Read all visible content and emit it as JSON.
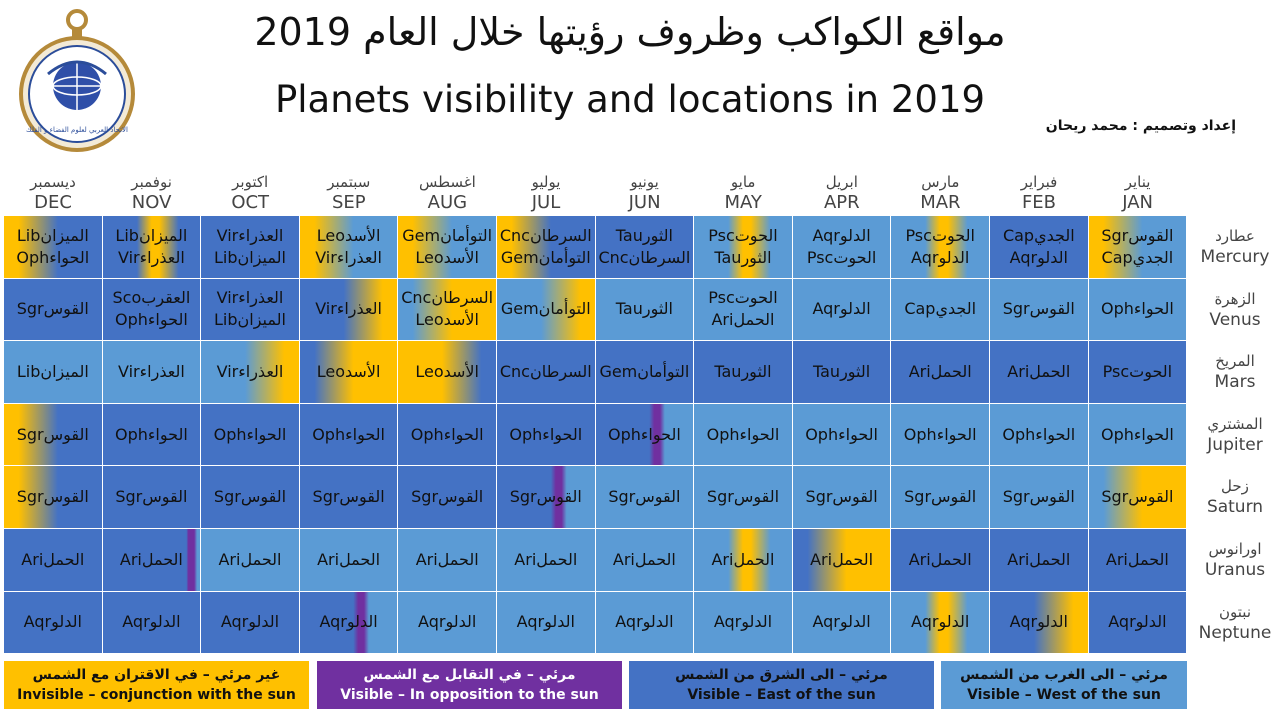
{
  "title_ar": "مواقع الكواكب وظروف رؤيتها خلال العام 2019",
  "title_en": "Planets visibility and locations in 2019",
  "credit": "إعداد وتصميم : محمد ريحان",
  "logo_text": "الاتحاد العربي لعلوم الفضاء و الفلك",
  "colors": {
    "west": "#5b9bd5",
    "east": "#4472c4",
    "opposition": "#7030a0",
    "conjunction": "#ffc000"
  },
  "months": [
    {
      "ar": "ديسمبر",
      "en": "DEC"
    },
    {
      "ar": "نوفمبر",
      "en": "NOV"
    },
    {
      "ar": "اكتوبر",
      "en": "OCT"
    },
    {
      "ar": "سبتمبر",
      "en": "SEP"
    },
    {
      "ar": "اغسطس",
      "en": "AUG"
    },
    {
      "ar": "يوليو",
      "en": "JUL"
    },
    {
      "ar": "يونيو",
      "en": "JUN"
    },
    {
      "ar": "مايو",
      "en": "MAY"
    },
    {
      "ar": "ابريل",
      "en": "APR"
    },
    {
      "ar": "مارس",
      "en": "MAR"
    },
    {
      "ar": "فبراير",
      "en": "FEB"
    },
    {
      "ar": "يناير",
      "en": "JAN"
    }
  ],
  "planets": [
    {
      "ar": "عطارد",
      "en": "Mercury",
      "cells": [
        {
          "lines": [
            [
              "Lib",
              "الميزان"
            ],
            [
              "Oph",
              "الحواء"
            ]
          ],
          "base": "east",
          "accent": "conjunction",
          "accent_side": "left"
        },
        {
          "lines": [
            [
              "Lib",
              "الميزان"
            ],
            [
              "Vir",
              "العذراء"
            ]
          ],
          "base": "east",
          "accent": "conjunction",
          "accent_side": "center"
        },
        {
          "lines": [
            [
              "Vir",
              "العذراء"
            ],
            [
              "Lib",
              "الميزان"
            ]
          ],
          "base": "east"
        },
        {
          "lines": [
            [
              "Leo",
              "الأسد"
            ],
            [
              "Vir",
              "العذراء"
            ]
          ],
          "base": "west",
          "accent": "conjunction",
          "accent_side": "left"
        },
        {
          "lines": [
            [
              "Gem",
              "التوأمان"
            ],
            [
              "Leo",
              "الأسد"
            ]
          ],
          "base": "west",
          "accent": "conjunction",
          "accent_side": "left"
        },
        {
          "lines": [
            [
              "Cnc",
              "السرطان"
            ],
            [
              "Gem",
              "التوأمان"
            ]
          ],
          "base": "east",
          "accent": "conjunction",
          "accent_side": "left"
        },
        {
          "lines": [
            [
              "Tau",
              "الثور"
            ],
            [
              "Cnc",
              "السرطان"
            ]
          ],
          "base": "east"
        },
        {
          "lines": [
            [
              "Psc",
              "الحوت"
            ],
            [
              "Tau",
              "الثور"
            ]
          ],
          "base": "west",
          "accent": "conjunction",
          "accent_side": "center"
        },
        {
          "lines": [
            [
              "Aqr",
              "الدلو"
            ],
            [
              "Psc",
              "الحوت"
            ]
          ],
          "base": "west"
        },
        {
          "lines": [
            [
              "Psc",
              "الحوت"
            ],
            [
              "Aqr",
              "الدلو"
            ]
          ],
          "base": "west",
          "accent": "conjunction",
          "accent_side": "center"
        },
        {
          "lines": [
            [
              "Cap",
              "الجدي"
            ],
            [
              "Aqr",
              "الدلو"
            ]
          ],
          "base": "east"
        },
        {
          "lines": [
            [
              "Sgr",
              "القوس"
            ],
            [
              "Cap",
              "الجدي"
            ]
          ],
          "base": "west",
          "accent": "conjunction",
          "accent_side": "left"
        }
      ]
    },
    {
      "ar": "الزهرة",
      "en": "Venus",
      "cells": [
        {
          "lines": [
            [
              "Sgr",
              "القوس"
            ]
          ],
          "base": "east"
        },
        {
          "lines": [
            [
              "Sco",
              "العقرب"
            ],
            [
              "Oph",
              "الحواء"
            ]
          ],
          "base": "east"
        },
        {
          "lines": [
            [
              "Vir",
              "العذراء"
            ],
            [
              "Lib",
              "الميزان"
            ]
          ],
          "base": "east"
        },
        {
          "lines": [
            [
              "Vir",
              "العذراء"
            ]
          ],
          "base": "east",
          "accent": "conjunction",
          "accent_side": "right"
        },
        {
          "lines": [
            [
              "Cnc",
              "السرطان"
            ],
            [
              "Leo",
              "الأسد"
            ]
          ],
          "base": "conjunction",
          "accent": "west",
          "accent_side": "left"
        },
        {
          "lines": [
            [
              "Gem",
              "التوأمان"
            ]
          ],
          "base": "west",
          "accent": "conjunction",
          "accent_side": "right"
        },
        {
          "lines": [
            [
              "Tau",
              "الثور"
            ]
          ],
          "base": "west"
        },
        {
          "lines": [
            [
              "Psc",
              "الحوت"
            ],
            [
              "Ari",
              "الحمل"
            ]
          ],
          "base": "west"
        },
        {
          "lines": [
            [
              "Aqr",
              "الدلو"
            ]
          ],
          "base": "west"
        },
        {
          "lines": [
            [
              "Cap",
              "الجدي"
            ]
          ],
          "base": "west"
        },
        {
          "lines": [
            [
              "Sgr",
              "القوس"
            ]
          ],
          "base": "west"
        },
        {
          "lines": [
            [
              "Oph",
              "الحواء"
            ]
          ],
          "base": "west"
        }
      ]
    },
    {
      "ar": "المريخ",
      "en": "Mars",
      "cells": [
        {
          "lines": [
            [
              "Lib",
              "الميزان"
            ]
          ],
          "base": "west"
        },
        {
          "lines": [
            [
              "Vir",
              "العذراء"
            ]
          ],
          "base": "west"
        },
        {
          "lines": [
            [
              "Vir",
              "العذراء"
            ]
          ],
          "base": "west",
          "accent": "conjunction",
          "accent_side": "right"
        },
        {
          "lines": [
            [
              "Leo",
              "الأسد"
            ]
          ],
          "base": "conjunction",
          "accent": "east",
          "accent_side": "left"
        },
        {
          "lines": [
            [
              "Leo",
              "الأسد"
            ]
          ],
          "base": "conjunction",
          "accent": "east",
          "accent_side": "right"
        },
        {
          "lines": [
            [
              "Cnc",
              "السرطان"
            ]
          ],
          "base": "east"
        },
        {
          "lines": [
            [
              "Gem",
              "التوأمان"
            ]
          ],
          "base": "east"
        },
        {
          "lines": [
            [
              "Tau",
              "الثور"
            ]
          ],
          "base": "east"
        },
        {
          "lines": [
            [
              "Tau",
              "الثور"
            ]
          ],
          "base": "east"
        },
        {
          "lines": [
            [
              "Ari",
              "الحمل"
            ]
          ],
          "base": "east"
        },
        {
          "lines": [
            [
              "Ari",
              "الحمل"
            ]
          ],
          "base": "east"
        },
        {
          "lines": [
            [
              "Psc",
              "الحوت"
            ]
          ],
          "base": "east"
        }
      ]
    },
    {
      "ar": "المشتري",
      "en": "Jupiter",
      "cells": [
        {
          "lines": [
            [
              "Sgr",
              "القوس"
            ]
          ],
          "base": "east",
          "accent": "conjunction",
          "accent_side": "left"
        },
        {
          "lines": [
            [
              "Oph",
              "الحواء"
            ]
          ],
          "base": "east"
        },
        {
          "lines": [
            [
              "Oph",
              "الحواء"
            ]
          ],
          "base": "east"
        },
        {
          "lines": [
            [
              "Oph",
              "الحواء"
            ]
          ],
          "base": "east"
        },
        {
          "lines": [
            [
              "Oph",
              "الحواء"
            ]
          ],
          "base": "east"
        },
        {
          "lines": [
            [
              "Oph",
              "الحواء"
            ]
          ],
          "base": "east"
        },
        {
          "lines": [
            [
              "Oph",
              "الحواء"
            ]
          ],
          "base": "east",
          "accent": "opposition",
          "accent_side": "stripe"
        },
        {
          "lines": [
            [
              "Oph",
              "الحواء"
            ]
          ],
          "base": "west"
        },
        {
          "lines": [
            [
              "Oph",
              "الحواء"
            ]
          ],
          "base": "west"
        },
        {
          "lines": [
            [
              "Oph",
              "الحواء"
            ]
          ],
          "base": "west"
        },
        {
          "lines": [
            [
              "Oph",
              "الحواء"
            ]
          ],
          "base": "west"
        },
        {
          "lines": [
            [
              "Oph",
              "الحواء"
            ]
          ],
          "base": "west"
        }
      ]
    },
    {
      "ar": "زحل",
      "en": "Saturn",
      "cells": [
        {
          "lines": [
            [
              "Sgr",
              "القوس"
            ]
          ],
          "base": "east",
          "accent": "conjunction",
          "accent_side": "left"
        },
        {
          "lines": [
            [
              "Sgr",
              "القوس"
            ]
          ],
          "base": "east"
        },
        {
          "lines": [
            [
              "Sgr",
              "القوس"
            ]
          ],
          "base": "east"
        },
        {
          "lines": [
            [
              "Sgr",
              "القوس"
            ]
          ],
          "base": "east"
        },
        {
          "lines": [
            [
              "Sgr",
              "القوس"
            ]
          ],
          "base": "east"
        },
        {
          "lines": [
            [
              "Sgr",
              "القوس"
            ]
          ],
          "base": "east",
          "accent": "opposition",
          "accent_side": "stripe"
        },
        {
          "lines": [
            [
              "Sgr",
              "القوس"
            ]
          ],
          "base": "west"
        },
        {
          "lines": [
            [
              "Sgr",
              "القوس"
            ]
          ],
          "base": "west"
        },
        {
          "lines": [
            [
              "Sgr",
              "القوس"
            ]
          ],
          "base": "west"
        },
        {
          "lines": [
            [
              "Sgr",
              "القوس"
            ]
          ],
          "base": "west"
        },
        {
          "lines": [
            [
              "Sgr",
              "القوس"
            ]
          ],
          "base": "west"
        },
        {
          "lines": [
            [
              "Sgr",
              "القوس"
            ]
          ],
          "base": "conjunction",
          "accent": "west",
          "accent_side": "left"
        }
      ]
    },
    {
      "ar": "اورانوس",
      "en": "Uranus",
      "cells": [
        {
          "lines": [
            [
              "Ari",
              "الحمل"
            ]
          ],
          "base": "east"
        },
        {
          "lines": [
            [
              "Ari",
              "الحمل"
            ]
          ],
          "base": "east",
          "accent": "opposition",
          "accent_side": "stripe-left"
        },
        {
          "lines": [
            [
              "Ari",
              "الحمل"
            ]
          ],
          "base": "west"
        },
        {
          "lines": [
            [
              "Ari",
              "الحمل"
            ]
          ],
          "base": "west"
        },
        {
          "lines": [
            [
              "Ari",
              "الحمل"
            ]
          ],
          "base": "west"
        },
        {
          "lines": [
            [
              "Ari",
              "الحمل"
            ]
          ],
          "base": "west"
        },
        {
          "lines": [
            [
              "Ari",
              "الحمل"
            ]
          ],
          "base": "west"
        },
        {
          "lines": [
            [
              "Ari",
              "الحمل"
            ]
          ],
          "base": "west",
          "accent": "conjunction",
          "accent_side": "center"
        },
        {
          "lines": [
            [
              "Ari",
              "الحمل"
            ]
          ],
          "base": "conjunction",
          "accent": "east",
          "accent_side": "left"
        },
        {
          "lines": [
            [
              "Ari",
              "الحمل"
            ]
          ],
          "base": "east"
        },
        {
          "lines": [
            [
              "Ari",
              "الحمل"
            ]
          ],
          "base": "east"
        },
        {
          "lines": [
            [
              "Ari",
              "الحمل"
            ]
          ],
          "base": "east"
        }
      ]
    },
    {
      "ar": "نبتون",
      "en": "Neptune",
      "cells": [
        {
          "lines": [
            [
              "Aqr",
              "الدلو"
            ]
          ],
          "base": "east"
        },
        {
          "lines": [
            [
              "Aqr",
              "الدلو"
            ]
          ],
          "base": "east"
        },
        {
          "lines": [
            [
              "Aqr",
              "الدلو"
            ]
          ],
          "base": "east"
        },
        {
          "lines": [
            [
              "Aqr",
              "الدلو"
            ]
          ],
          "base": "east",
          "accent": "opposition",
          "accent_side": "stripe"
        },
        {
          "lines": [
            [
              "Aqr",
              "الدلو"
            ]
          ],
          "base": "west"
        },
        {
          "lines": [
            [
              "Aqr",
              "الدلو"
            ]
          ],
          "base": "west"
        },
        {
          "lines": [
            [
              "Aqr",
              "الدلو"
            ]
          ],
          "base": "west"
        },
        {
          "lines": [
            [
              "Aqr",
              "الدلو"
            ]
          ],
          "base": "west"
        },
        {
          "lines": [
            [
              "Aqr",
              "الدلو"
            ]
          ],
          "base": "west"
        },
        {
          "lines": [
            [
              "Aqr",
              "الدلو"
            ]
          ],
          "base": "west",
          "accent": "conjunction",
          "accent_side": "center"
        },
        {
          "lines": [
            [
              "Aqr",
              "الدلو"
            ]
          ],
          "base": "east",
          "accent": "conjunction",
          "accent_side": "right"
        },
        {
          "lines": [
            [
              "Aqr",
              "الدلو"
            ]
          ],
          "base": "east"
        }
      ]
    }
  ],
  "legend": [
    {
      "key": "conjunction",
      "ar": "غير مرئي – في الاقتران مع الشمس",
      "en": "Invisible – conjunction  with the sun"
    },
    {
      "key": "opposition",
      "ar": "مرئي – في التقابل مع الشمس",
      "en": "Visible – In opposition to the sun"
    },
    {
      "key": "east",
      "ar": "مرئي – الى الشرق من الشمس",
      "en": "Visible – East of the sun"
    },
    {
      "key": "west",
      "ar": "مرئي – الى الغرب من الشمس",
      "en": "Visible – West of the sun"
    }
  ]
}
